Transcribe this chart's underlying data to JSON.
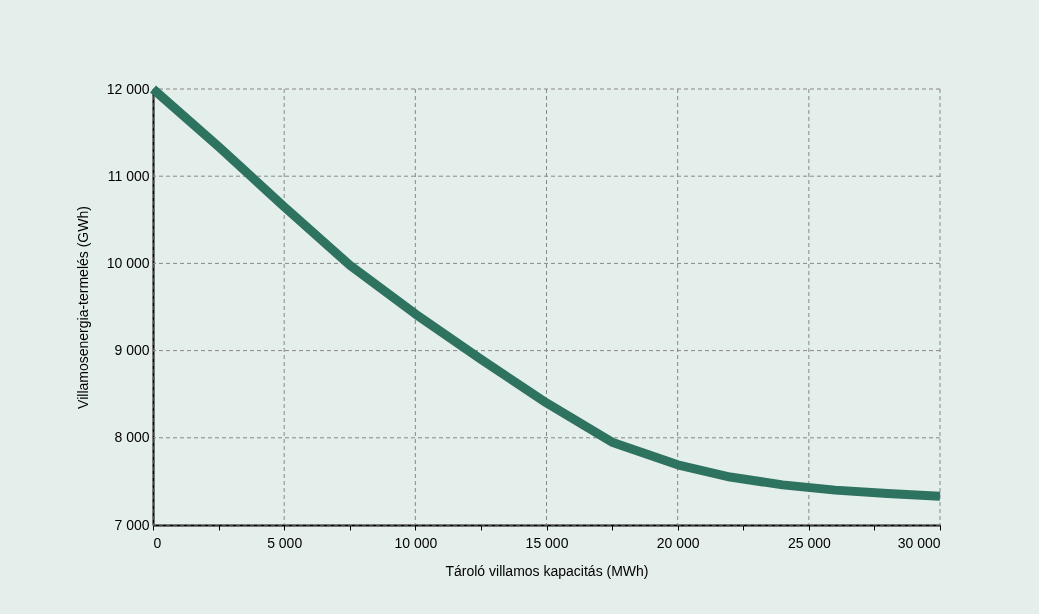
{
  "chart_data": {
    "type": "line",
    "xlabel": "Tároló villamos kapacitás (MWh)",
    "ylabel": "Villamosenergia-termelés (GWh)",
    "x": [
      0,
      2500,
      5000,
      7500,
      10000,
      12500,
      14000,
      15000,
      17500,
      20000,
      22000,
      24000,
      26000,
      28000,
      30000
    ],
    "series": [
      {
        "color": "#2e7360",
        "values": [
          12000,
          11340,
          10650,
          9980,
          9420,
          8900,
          8600,
          8400,
          7950,
          7690,
          7550,
          7460,
          7400,
          7360,
          7330
        ]
      }
    ],
    "xlim": [
      0,
      30000
    ],
    "xticks": [
      0,
      {
        "value": 2500,
        "label": null
      },
      {
        "value": 5000,
        "label": "5 000"
      },
      {
        "value": 7500,
        "label": null
      },
      {
        "value": 10000,
        "label": "10 000"
      },
      {
        "value": 12500,
        "label": null
      },
      {
        "value": 15000,
        "label": "15 000"
      },
      {
        "value": 17500,
        "label": null
      },
      {
        "value": 20000,
        "label": "20 000"
      },
      {
        "value": 22500,
        "label": null
      },
      {
        "value": 25000,
        "label": "25 000"
      },
      {
        "value": 27500,
        "label": null
      },
      {
        "value": 30000,
        "label": "30 000"
      }
    ],
    "ylim": [
      7000,
      12000
    ],
    "yticks": [
      {
        "value": 7000,
        "label": "7 000"
      },
      {
        "value": 8000,
        "label": "8 000"
      },
      {
        "value": 9000,
        "label": "9 000"
      },
      {
        "value": 10000,
        "label": "10 000"
      },
      {
        "value": 11000,
        "label": "11 000"
      },
      {
        "value": 12000,
        "label": "12 000"
      }
    ],
    "grid": true,
    "line_style": "solid",
    "marker": "none",
    "legend": false
  }
}
